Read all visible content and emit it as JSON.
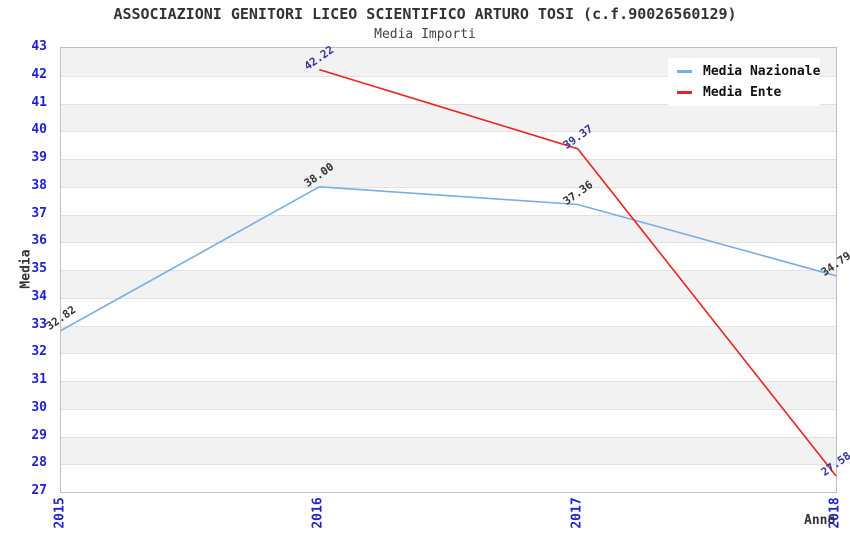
{
  "chart_data": {
    "type": "line",
    "title": "ASSOCIAZIONI GENITORI LICEO SCIENTIFICO ARTURO TOSI (c.f.90026560129)",
    "subtitle": "Media Importi",
    "xlabel": "Anno",
    "ylabel": "Media",
    "categories": [
      "2015",
      "2016",
      "2017",
      "2018"
    ],
    "ylim": [
      27,
      43
    ],
    "yticks": [
      "43",
      "42",
      "41",
      "40",
      "39",
      "38",
      "37",
      "36",
      "35",
      "34",
      "33",
      "32",
      "31",
      "30",
      "29",
      "28",
      "27"
    ],
    "grid": true,
    "band_colors": [
      "#f2f2f2",
      "#ffffff"
    ],
    "gridline_color": "#e2e2e2",
    "tick_color": "#2222cc",
    "legend_position": "top-right",
    "series": [
      {
        "name": "Media Nazionale",
        "color": "#7aade0",
        "label_color": "#333333",
        "values": [
          32.82,
          38.0,
          37.36,
          34.79
        ],
        "labels": [
          "32.82",
          "38.00",
          "37.36",
          "34.79"
        ]
      },
      {
        "name": "Media Ente",
        "color": "#ee2222",
        "label_color": "#333399",
        "values": [
          null,
          42.22,
          39.37,
          27.58
        ],
        "labels": [
          null,
          "42.22",
          "39.37",
          "27.58"
        ]
      }
    ]
  }
}
